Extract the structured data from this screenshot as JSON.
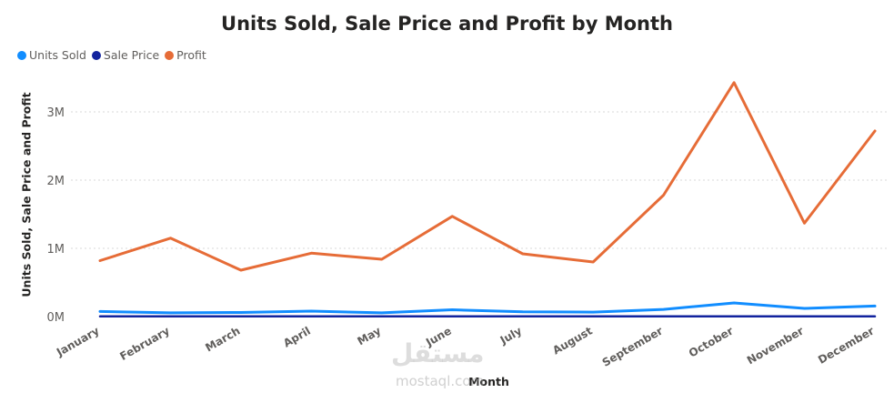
{
  "chart_data": {
    "type": "line",
    "title": "Units Sold, Sale Price and Profit by Month",
    "xlabel": "Month",
    "ylabel": "Units Sold, Sale Price and Profit",
    "categories": [
      "January",
      "February",
      "March",
      "April",
      "May",
      "June",
      "July",
      "August",
      "September",
      "October",
      "November",
      "December"
    ],
    "y_ticks": [
      0,
      1000000,
      2000000,
      3000000
    ],
    "y_tick_labels": [
      "0M",
      "1M",
      "2M",
      "3M"
    ],
    "ylim": [
      0,
      3600000
    ],
    "grid": true,
    "legend_position": "top-left",
    "series": [
      {
        "name": "Units Sold",
        "color": "#118DFF",
        "values": [
          75000,
          55000,
          60000,
          80000,
          55000,
          100000,
          70000,
          65000,
          105000,
          200000,
          120000,
          155000
        ]
      },
      {
        "name": "Sale Price",
        "color": "#12239E",
        "values": [
          3000,
          3000,
          3000,
          3000,
          3000,
          3000,
          3000,
          3000,
          3000,
          3000,
          3000,
          3000
        ]
      },
      {
        "name": "Profit",
        "color": "#E66C37",
        "values": [
          820000,
          1150000,
          680000,
          930000,
          840000,
          1470000,
          920000,
          800000,
          1780000,
          3430000,
          1370000,
          2720000
        ]
      }
    ]
  },
  "watermark": {
    "main": "مستقل",
    "sub": "mostaql.com"
  }
}
